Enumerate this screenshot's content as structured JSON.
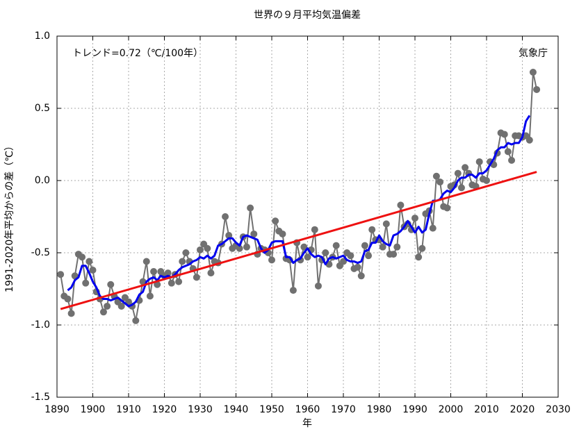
{
  "chart_data": {
    "type": "line",
    "title": "世界の９月平均気温偏差",
    "annotations": [
      "トレンド=0.72（℃/100年）",
      "気象庁"
    ],
    "x_label": "年",
    "y_label": "1991-2020年平均からの差（℃）",
    "x": [
      1891,
      1892,
      1893,
      1894,
      1895,
      1896,
      1897,
      1898,
      1899,
      1900,
      1901,
      1902,
      1903,
      1904,
      1905,
      1906,
      1907,
      1908,
      1909,
      1910,
      1911,
      1912,
      1913,
      1914,
      1915,
      1916,
      1917,
      1918,
      1919,
      1920,
      1921,
      1922,
      1923,
      1924,
      1925,
      1926,
      1927,
      1928,
      1929,
      1930,
      1931,
      1932,
      1933,
      1934,
      1935,
      1936,
      1937,
      1938,
      1939,
      1940,
      1941,
      1942,
      1943,
      1944,
      1945,
      1946,
      1947,
      1948,
      1949,
      1950,
      1951,
      1952,
      1953,
      1954,
      1955,
      1956,
      1957,
      1958,
      1959,
      1960,
      1961,
      1962,
      1963,
      1964,
      1965,
      1966,
      1967,
      1968,
      1969,
      1970,
      1971,
      1972,
      1973,
      1974,
      1975,
      1976,
      1977,
      1978,
      1979,
      1980,
      1981,
      1982,
      1983,
      1984,
      1985,
      1986,
      1987,
      1988,
      1989,
      1990,
      1991,
      1992,
      1993,
      1994,
      1995,
      1996,
      1997,
      1998,
      1999,
      2000,
      2001,
      2002,
      2003,
      2004,
      2005,
      2006,
      2007,
      2008,
      2009,
      2010,
      2011,
      2012,
      2013,
      2014,
      2015,
      2016,
      2017,
      2018,
      2019,
      2020,
      2021,
      2022,
      2023,
      2024
    ],
    "series": [
      {
        "color": "#707070",
        "markers": true,
        "values": [
          -0.65,
          -0.8,
          -0.82,
          -0.92,
          -0.66,
          -0.51,
          -0.53,
          -0.71,
          -0.56,
          -0.62,
          -0.77,
          -0.82,
          -0.91,
          -0.87,
          -0.72,
          -0.8,
          -0.84,
          -0.87,
          -0.81,
          -0.84,
          -0.87,
          -0.97,
          -0.83,
          -0.7,
          -0.56,
          -0.8,
          -0.63,
          -0.72,
          -0.63,
          -0.66,
          -0.64,
          -0.71,
          -0.65,
          -0.7,
          -0.56,
          -0.5,
          -0.56,
          -0.61,
          -0.67,
          -0.48,
          -0.44,
          -0.47,
          -0.64,
          -0.56,
          -0.57,
          -0.44,
          -0.25,
          -0.38,
          -0.47,
          -0.45,
          -0.47,
          -0.39,
          -0.46,
          -0.19,
          -0.37,
          -0.51,
          -0.47,
          -0.48,
          -0.5,
          -0.55,
          -0.28,
          -0.35,
          -0.37,
          -0.54,
          -0.55,
          -0.76,
          -0.43,
          -0.55,
          -0.46,
          -0.53,
          -0.48,
          -0.34,
          -0.73,
          -0.55,
          -0.5,
          -0.58,
          -0.53,
          -0.45,
          -0.59,
          -0.56,
          -0.5,
          -0.52,
          -0.61,
          -0.6,
          -0.66,
          -0.45,
          -0.52,
          -0.34,
          -0.41,
          -0.41,
          -0.46,
          -0.3,
          -0.51,
          -0.51,
          -0.46,
          -0.17,
          -0.32,
          -0.3,
          -0.34,
          -0.26,
          -0.53,
          -0.47,
          -0.23,
          -0.21,
          -0.33,
          0.03,
          -0.01,
          -0.18,
          -0.19,
          -0.04,
          -0.03,
          0.05,
          -0.05,
          0.09,
          0.05,
          -0.03,
          -0.04,
          0.13,
          0.01,
          0.0,
          0.13,
          0.11,
          0.19,
          0.33,
          0.32,
          0.2,
          0.14,
          0.31,
          0.31,
          0.3,
          0.31,
          0.28,
          0.75,
          0.63
        ]
      },
      {
        "color": "#0000ee",
        "markers": false,
        "values": [
          null,
          null,
          -0.76,
          -0.74,
          -0.69,
          -0.67,
          -0.59,
          -0.59,
          -0.64,
          -0.7,
          -0.74,
          -0.8,
          -0.82,
          -0.82,
          -0.83,
          -0.82,
          -0.81,
          -0.83,
          -0.85,
          -0.87,
          -0.86,
          -0.84,
          -0.79,
          -0.77,
          -0.7,
          -0.68,
          -0.67,
          -0.69,
          -0.66,
          -0.67,
          -0.66,
          -0.67,
          -0.65,
          -0.62,
          -0.6,
          -0.59,
          -0.58,
          -0.56,
          -0.55,
          -0.53,
          -0.54,
          -0.52,
          -0.54,
          -0.52,
          -0.45,
          -0.44,
          -0.42,
          -0.4,
          -0.4,
          -0.43,
          -0.45,
          -0.39,
          -0.38,
          -0.39,
          -0.4,
          -0.41,
          -0.47,
          -0.5,
          -0.48,
          -0.43,
          -0.42,
          -0.42,
          -0.42,
          -0.53,
          -0.53,
          -0.57,
          -0.55,
          -0.54,
          -0.5,
          -0.47,
          -0.51,
          -0.53,
          -0.52,
          -0.53,
          -0.58,
          -0.54,
          -0.53,
          -0.54,
          -0.53,
          -0.52,
          -0.55,
          -0.56,
          -0.56,
          -0.57,
          -0.56,
          -0.49,
          -0.48,
          -0.43,
          -0.43,
          -0.38,
          -0.42,
          -0.44,
          -0.45,
          -0.38,
          -0.37,
          -0.35,
          -0.32,
          -0.28,
          -0.32,
          -0.36,
          -0.32,
          -0.36,
          -0.34,
          -0.23,
          -0.14,
          -0.14,
          -0.13,
          -0.09,
          -0.07,
          -0.08,
          -0.05,
          0.0,
          0.02,
          0.02,
          0.04,
          0.04,
          0.02,
          0.05,
          0.05,
          0.07,
          0.11,
          0.15,
          0.21,
          0.23,
          0.23,
          0.26,
          0.25,
          0.26,
          0.26,
          0.3,
          0.41,
          0.45,
          null,
          null
        ]
      }
    ],
    "trend_line": {
      "color": "#ee1111",
      "x": [
        1891,
        2024
      ],
      "values": [
        -0.89,
        0.06
      ]
    },
    "xlim": [
      1890,
      2030
    ],
    "xticks": [
      1890,
      1900,
      1910,
      1920,
      1930,
      1940,
      1950,
      1960,
      1970,
      1980,
      1990,
      2000,
      2010,
      2020,
      2030
    ],
    "ylim": [
      -1.5,
      1.0
    ],
    "yticks": [
      {
        "value": -1.5,
        "label": "-1.5"
      },
      {
        "value": -1.0,
        "label": "-1.0"
      },
      {
        "value": -0.5,
        "label": "-0.5"
      },
      {
        "value": 0,
        "label": "0.0"
      },
      {
        "value": 0.5,
        "label": "0.5"
      },
      {
        "value": 1.0,
        "label": "1.0"
      }
    ],
    "grid": true
  }
}
